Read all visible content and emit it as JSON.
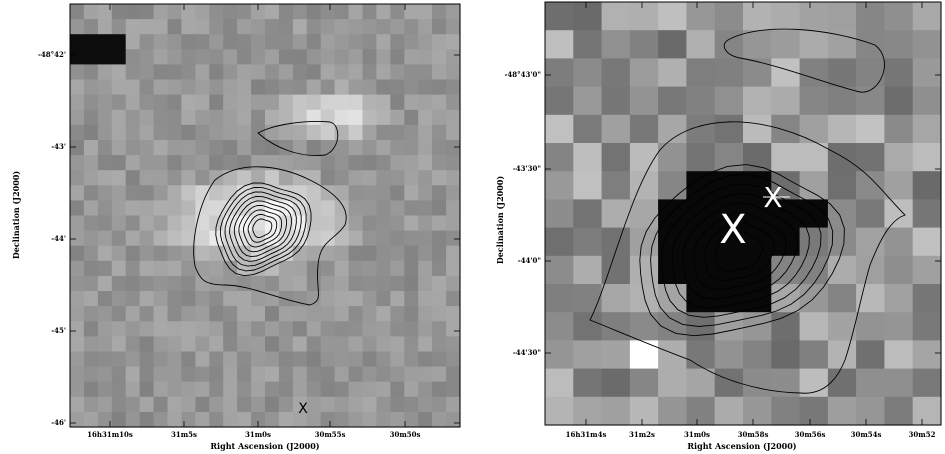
{
  "panels": [
    {
      "id": "left",
      "xlabel": "Right Ascension (J2000)",
      "ylabel": "Declination (J2000)",
      "x_ticks": [
        "16h31m10s",
        "31m5s",
        "31m0s",
        "30m55s",
        "30m50s"
      ],
      "y_ticks": [
        "-48°42'",
        "-43'",
        "-44'",
        "-45'",
        "-46'"
      ],
      "markers": [
        {
          "symbol": "X",
          "color": "#000000"
        }
      ]
    },
    {
      "id": "right",
      "xlabel": "Right Ascension (J2000)",
      "ylabel": "Declination (J2000)",
      "x_ticks": [
        "16h31m4s",
        "31m2s",
        "31m0s",
        "30m58s",
        "30m56s",
        "30m54s",
        "30m52"
      ],
      "y_ticks": [
        "-48°43'0\"",
        "-43'30\"",
        "-44'0\"",
        "-44'30\""
      ],
      "markers": [
        {
          "symbol": "X",
          "color": "#ffffff"
        },
        {
          "symbol": "X",
          "color": "#ffffff"
        }
      ]
    }
  ]
}
